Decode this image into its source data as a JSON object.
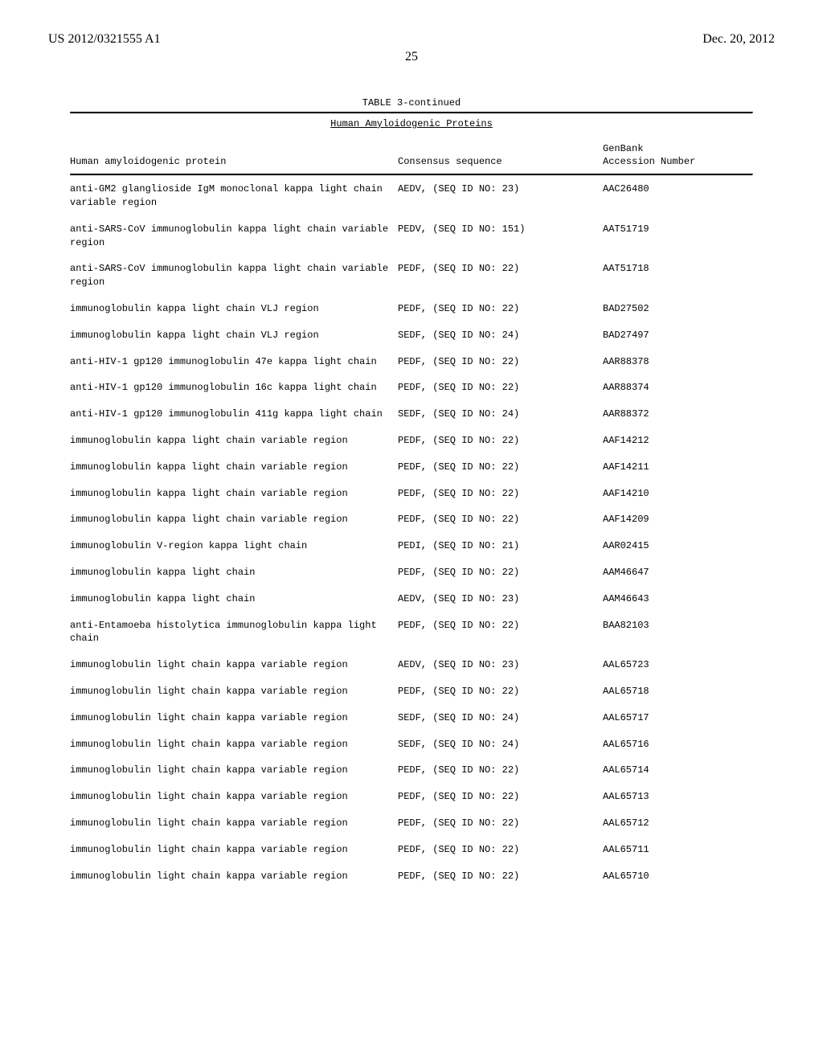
{
  "header": {
    "left": "US 2012/0321555 A1",
    "right": "Dec. 20, 2012"
  },
  "page_number": "25",
  "table": {
    "caption": "TABLE 3-continued",
    "section_title": "Human Amyloidogenic Proteins",
    "columns": {
      "protein": "Human amyloidogenic protein",
      "consensus": "Consensus sequence",
      "genbank_line1": "GenBank",
      "genbank_line2": "Accession Number"
    },
    "rows": [
      {
        "protein": "anti-GM2 glanglioside IgM monoclonal kappa light chain variable region",
        "seq": "AEDV, (SEQ ID NO: 23)",
        "acc": "AAC26480"
      },
      {
        "protein": "anti-SARS-CoV immunoglobulin kappa light chain variable region",
        "seq": "PEDV, (SEQ ID NO: 151)",
        "acc": "AAT51719"
      },
      {
        "protein": "anti-SARS-CoV immunoglobulin kappa light chain variable region",
        "seq": "PEDF, (SEQ ID NO: 22)",
        "acc": "AAT51718"
      },
      {
        "protein": "immunoglobulin kappa light chain VLJ region",
        "seq": "PEDF, (SEQ ID NO: 22)",
        "acc": "BAD27502"
      },
      {
        "protein": "immunoglobulin kappa light chain VLJ region",
        "seq": "SEDF, (SEQ ID NO: 24)",
        "acc": "BAD27497"
      },
      {
        "protein": "anti-HIV-1 gp120 immunoglobulin 47e kappa light chain",
        "seq": "PEDF, (SEQ ID NO: 22)",
        "acc": "AAR88378"
      },
      {
        "protein": "anti-HIV-1 gp120 immunoglobulin 16c kappa light chain",
        "seq": "PEDF, (SEQ ID NO: 22)",
        "acc": "AAR88374"
      },
      {
        "protein": "anti-HIV-1 gp120 immunoglobulin 411g kappa light chain",
        "seq": "SEDF, (SEQ ID NO: 24)",
        "acc": "AAR88372"
      },
      {
        "protein": "immunoglobulin kappa light chain variable region",
        "seq": "PEDF, (SEQ ID NO: 22)",
        "acc": "AAF14212"
      },
      {
        "protein": "immunoglobulin kappa light chain variable region",
        "seq": "PEDF, (SEQ ID NO: 22)",
        "acc": "AAF14211"
      },
      {
        "protein": "immunoglobulin kappa light chain variable region",
        "seq": "PEDF, (SEQ ID NO: 22)",
        "acc": "AAF14210"
      },
      {
        "protein": "immunoglobulin kappa light chain variable region",
        "seq": "PEDF, (SEQ ID NO: 22)",
        "acc": "AAF14209"
      },
      {
        "protein": "immunoglobulin V-region kappa light chain",
        "seq": "PEDI, (SEQ ID NO: 21)",
        "acc": "AAR02415"
      },
      {
        "protein": "immunoglobulin kappa light chain",
        "seq": "PEDF, (SEQ ID NO: 22)",
        "acc": "AAM46647"
      },
      {
        "protein": "immunoglobulin kappa light chain",
        "seq": "AEDV, (SEQ ID NO: 23)",
        "acc": "AAM46643"
      },
      {
        "protein": "anti-Entamoeba histolytica immunoglobulin kappa light chain",
        "seq": "PEDF, (SEQ ID NO: 22)",
        "acc": "BAA82103"
      },
      {
        "protein": "immunoglobulin light chain kappa variable region",
        "seq": "AEDV, (SEQ ID NO: 23)",
        "acc": "AAL65723"
      },
      {
        "protein": "immunoglobulin light chain kappa variable region",
        "seq": "PEDF, (SEQ ID NO: 22)",
        "acc": "AAL65718"
      },
      {
        "protein": "immunoglobulin light chain kappa variable region",
        "seq": "SEDF, (SEQ ID NO: 24)",
        "acc": "AAL65717"
      },
      {
        "protein": "immunoglobulin light chain kappa variable region",
        "seq": "SEDF, (SEQ ID NO: 24)",
        "acc": "AAL65716"
      },
      {
        "protein": "immunoglobulin light chain kappa variable region",
        "seq": "PEDF, (SEQ ID NO: 22)",
        "acc": "AAL65714"
      },
      {
        "protein": "immunoglobulin light chain kappa variable region",
        "seq": "PEDF, (SEQ ID NO: 22)",
        "acc": "AAL65713"
      },
      {
        "protein": "immunoglobulin light chain kappa variable region",
        "seq": "PEDF, (SEQ ID NO: 22)",
        "acc": "AAL65712"
      },
      {
        "protein": "immunoglobulin light chain kappa variable region",
        "seq": "PEDF, (SEQ ID NO: 22)",
        "acc": "AAL65711"
      },
      {
        "protein": "immunoglobulin light chain kappa variable region",
        "seq": "PEDF, (SEQ ID NO: 22)",
        "acc": "AAL65710"
      }
    ]
  }
}
